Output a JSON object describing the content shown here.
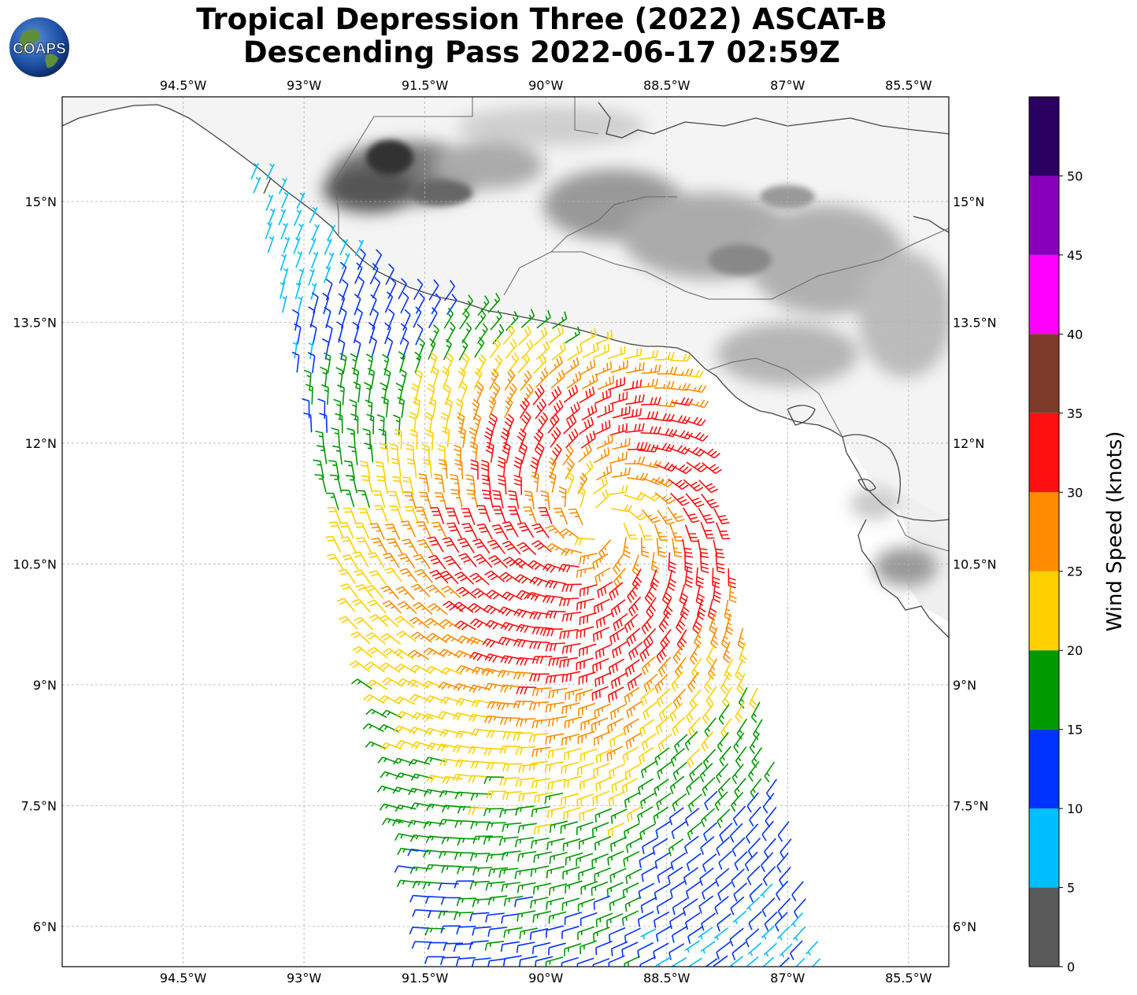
{
  "title": {
    "line1": "Tropical Depression Three (2022) ASCAT-B",
    "line2": "Descending Pass 2022-06-17 02:59Z"
  },
  "logo": {
    "text": "COAPS"
  },
  "map": {
    "projection": "plate-carree",
    "lon_range": [
      -96.0,
      -85.0
    ],
    "lat_range": [
      5.5,
      16.3
    ],
    "lon_ticks": [
      "94.5°W",
      "93°W",
      "91.5°W",
      "90°W",
      "88.5°W",
      "87°W",
      "85.5°W"
    ],
    "lon_tick_values": [
      -94.5,
      -93,
      -91.5,
      -90,
      -88.5,
      -87,
      -85.5
    ],
    "lat_ticks": [
      "15°N",
      "13.5°N",
      "12°N",
      "10.5°N",
      "9°N",
      "7.5°N",
      "6°N"
    ],
    "lat_tick_values": [
      15,
      13.5,
      12,
      10.5,
      9,
      7.5,
      6
    ],
    "grid": true,
    "land_color": "terrain-grayscale",
    "coastline_color": "#444444"
  },
  "wind_field": {
    "type": "cyclonic-barbs",
    "center_lon": -89.3,
    "center_lat": 11.0,
    "swath_note_hidden": true
  },
  "colorbar": {
    "title": "Wind Speed (knots)",
    "ticks": [
      "0",
      "5",
      "10",
      "15",
      "20",
      "25",
      "30",
      "35",
      "40",
      "45",
      "50"
    ],
    "bins": [
      {
        "min": 0,
        "max": 5,
        "color": "#595959"
      },
      {
        "min": 5,
        "max": 10,
        "color": "#00bfff"
      },
      {
        "min": 10,
        "max": 15,
        "color": "#0033ff"
      },
      {
        "min": 15,
        "max": 20,
        "color": "#009900"
      },
      {
        "min": 20,
        "max": 25,
        "color": "#ffd000"
      },
      {
        "min": 25,
        "max": 30,
        "color": "#ff8c00"
      },
      {
        "min": 30,
        "max": 35,
        "color": "#ff1010"
      },
      {
        "min": 35,
        "max": 40,
        "color": "#7f3b2a"
      },
      {
        "min": 40,
        "max": 45,
        "color": "#ff00ff"
      },
      {
        "min": 45,
        "max": 50,
        "color": "#8800bb"
      },
      {
        "min": 50,
        "max": 55,
        "color": "#2a0060"
      }
    ]
  }
}
